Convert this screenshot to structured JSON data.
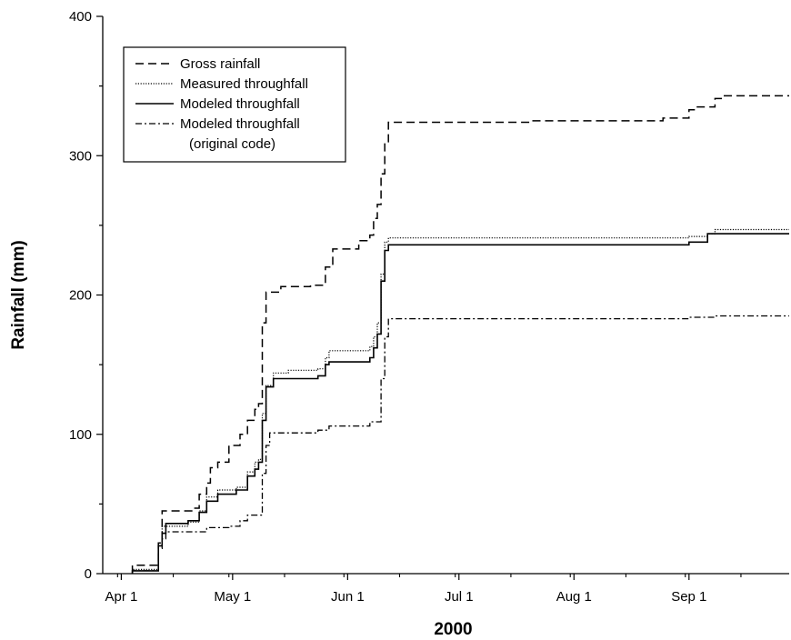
{
  "chart_data": {
    "type": "line",
    "title": "",
    "xlabel": "2000",
    "ylabel": "Rainfall (mm)",
    "ylim": [
      0,
      400
    ],
    "xlim": [
      "2000-03-27",
      "2000-09-28"
    ],
    "grid": false,
    "legend_position": "top-left",
    "x_ticks": [
      {
        "date": "2000-04-01",
        "label": "Apr 1"
      },
      {
        "date": "2000-05-01",
        "label": "May 1"
      },
      {
        "date": "2000-06-01",
        "label": "Jun 1"
      },
      {
        "date": "2000-07-01",
        "label": "Jul 1"
      },
      {
        "date": "2000-08-01",
        "label": "Aug 1"
      },
      {
        "date": "2000-09-01",
        "label": "Sep 1"
      }
    ],
    "y_ticks": [
      0,
      100,
      200,
      300,
      400
    ],
    "series": [
      {
        "name": "Gross rainfall",
        "style": "dashed",
        "x": [
          "2000-04-04",
          "2000-04-04",
          "2000-04-11",
          "2000-04-11",
          "2000-04-12",
          "2000-04-12",
          "2000-04-20",
          "2000-04-20",
          "2000-04-22",
          "2000-04-22",
          "2000-04-24",
          "2000-04-24",
          "2000-04-25",
          "2000-04-25",
          "2000-04-27",
          "2000-04-27",
          "2000-04-30",
          "2000-04-30",
          "2000-05-03",
          "2000-05-03",
          "2000-05-05",
          "2000-05-05",
          "2000-05-07",
          "2000-05-07",
          "2000-05-08",
          "2000-05-08",
          "2000-05-09",
          "2000-05-09",
          "2000-05-10",
          "2000-05-10",
          "2000-05-14",
          "2000-05-14",
          "2000-05-22",
          "2000-05-22",
          "2000-05-26",
          "2000-05-26",
          "2000-05-28",
          "2000-05-28",
          "2000-06-04",
          "2000-06-04",
          "2000-06-07",
          "2000-06-07",
          "2000-06-08",
          "2000-06-08",
          "2000-06-09",
          "2000-06-09",
          "2000-06-10",
          "2000-06-10",
          "2000-06-11",
          "2000-06-11",
          "2000-06-12",
          "2000-06-12",
          "2000-07-20",
          "2000-07-20",
          "2000-08-25",
          "2000-08-25",
          "2000-09-01",
          "2000-09-01",
          "2000-09-03",
          "2000-09-03",
          "2000-09-08",
          "2000-09-08",
          "2000-09-10",
          "2000-09-10",
          "2000-09-28"
        ],
        "y": [
          0,
          6,
          6,
          22,
          22,
          45,
          45,
          47,
          47,
          57,
          57,
          65,
          65,
          76,
          76,
          80,
          80,
          92,
          92,
          100,
          100,
          110,
          110,
          118,
          118,
          122,
          122,
          180,
          180,
          202,
          202,
          206,
          206,
          207,
          207,
          220,
          220,
          233,
          233,
          239,
          239,
          243,
          243,
          255,
          255,
          265,
          265,
          287,
          287,
          310,
          310,
          324,
          324,
          325,
          325,
          327,
          327,
          333,
          333,
          335,
          335,
          341,
          341,
          343,
          343
        ]
      },
      {
        "name": "Measured throughfall",
        "style": "dotted",
        "x": [
          "2000-04-04",
          "2000-04-04",
          "2000-04-11",
          "2000-04-11",
          "2000-04-12",
          "2000-04-12",
          "2000-04-19",
          "2000-04-19",
          "2000-04-22",
          "2000-04-22",
          "2000-04-24",
          "2000-04-24",
          "2000-04-27",
          "2000-04-27",
          "2000-05-02",
          "2000-05-02",
          "2000-05-05",
          "2000-05-05",
          "2000-05-07",
          "2000-05-07",
          "2000-05-08",
          "2000-05-08",
          "2000-05-09",
          "2000-05-09",
          "2000-05-10",
          "2000-05-10",
          "2000-05-12",
          "2000-05-12",
          "2000-05-16",
          "2000-05-16",
          "2000-05-24",
          "2000-05-24",
          "2000-05-26",
          "2000-05-26",
          "2000-05-27",
          "2000-05-27",
          "2000-06-07",
          "2000-06-07",
          "2000-06-08",
          "2000-06-08",
          "2000-06-09",
          "2000-06-09",
          "2000-06-10",
          "2000-06-10",
          "2000-06-11",
          "2000-06-11",
          "2000-06-12",
          "2000-06-12",
          "2000-09-01",
          "2000-09-01",
          "2000-09-06",
          "2000-09-06",
          "2000-09-08",
          "2000-09-08",
          "2000-09-28"
        ],
        "y": [
          0,
          3,
          3,
          20,
          20,
          34,
          34,
          37,
          37,
          45,
          45,
          55,
          55,
          60,
          60,
          62,
          62,
          73,
          73,
          80,
          80,
          82,
          82,
          115,
          115,
          135,
          135,
          144,
          144,
          146,
          146,
          147,
          147,
          155,
          155,
          160,
          160,
          163,
          163,
          170,
          170,
          180,
          180,
          215,
          215,
          238,
          238,
          241,
          241,
          242,
          242,
          244,
          244,
          247,
          247
        ]
      },
      {
        "name": "Modeled throughfall",
        "style": "solid",
        "x": [
          "2000-04-04",
          "2000-04-04",
          "2000-04-11",
          "2000-04-11",
          "2000-04-12",
          "2000-04-12",
          "2000-04-13",
          "2000-04-13",
          "2000-04-19",
          "2000-04-19",
          "2000-04-22",
          "2000-04-22",
          "2000-04-24",
          "2000-04-24",
          "2000-04-27",
          "2000-04-27",
          "2000-05-02",
          "2000-05-02",
          "2000-05-05",
          "2000-05-05",
          "2000-05-07",
          "2000-05-07",
          "2000-05-08",
          "2000-05-08",
          "2000-05-09",
          "2000-05-09",
          "2000-05-10",
          "2000-05-10",
          "2000-05-12",
          "2000-05-12",
          "2000-05-24",
          "2000-05-24",
          "2000-05-26",
          "2000-05-26",
          "2000-05-27",
          "2000-05-27",
          "2000-06-07",
          "2000-06-07",
          "2000-06-08",
          "2000-06-08",
          "2000-06-09",
          "2000-06-09",
          "2000-06-10",
          "2000-06-10",
          "2000-06-11",
          "2000-06-11",
          "2000-06-12",
          "2000-06-12",
          "2000-09-01",
          "2000-09-01",
          "2000-09-06",
          "2000-09-06",
          "2000-09-28"
        ],
        "y": [
          0,
          2,
          2,
          20,
          20,
          29,
          29,
          36,
          36,
          38,
          38,
          44,
          44,
          52,
          52,
          57,
          57,
          60,
          60,
          70,
          70,
          75,
          75,
          80,
          80,
          110,
          110,
          134,
          134,
          140,
          140,
          142,
          142,
          150,
          150,
          152,
          152,
          155,
          155,
          162,
          162,
          172,
          172,
          210,
          210,
          232,
          232,
          236,
          236,
          238,
          238,
          244,
          244
        ]
      },
      {
        "name": "Modeled throughfall",
        "name_line2": "(original code)",
        "style": "dashdot",
        "x": [
          "2000-04-04",
          "2000-04-04",
          "2000-04-11",
          "2000-04-11",
          "2000-04-12",
          "2000-04-12",
          "2000-04-13",
          "2000-04-13",
          "2000-04-24",
          "2000-04-24",
          "2000-04-30",
          "2000-04-30",
          "2000-05-03",
          "2000-05-03",
          "2000-05-05",
          "2000-05-05",
          "2000-05-09",
          "2000-05-09",
          "2000-05-10",
          "2000-05-10",
          "2000-05-11",
          "2000-05-11",
          "2000-05-24",
          "2000-05-24",
          "2000-05-27",
          "2000-05-27",
          "2000-06-07",
          "2000-06-07",
          "2000-06-10",
          "2000-06-10",
          "2000-06-11",
          "2000-06-11",
          "2000-06-12",
          "2000-06-12",
          "2000-09-01",
          "2000-09-01",
          "2000-09-08",
          "2000-09-08",
          "2000-09-28"
        ],
        "y": [
          0,
          2,
          2,
          18,
          18,
          25,
          25,
          30,
          30,
          33,
          33,
          34,
          34,
          38,
          38,
          42,
          42,
          72,
          72,
          92,
          92,
          101,
          101,
          103,
          103,
          106,
          106,
          109,
          109,
          140,
          140,
          170,
          170,
          183,
          183,
          184,
          184,
          185,
          185
        ]
      }
    ]
  }
}
